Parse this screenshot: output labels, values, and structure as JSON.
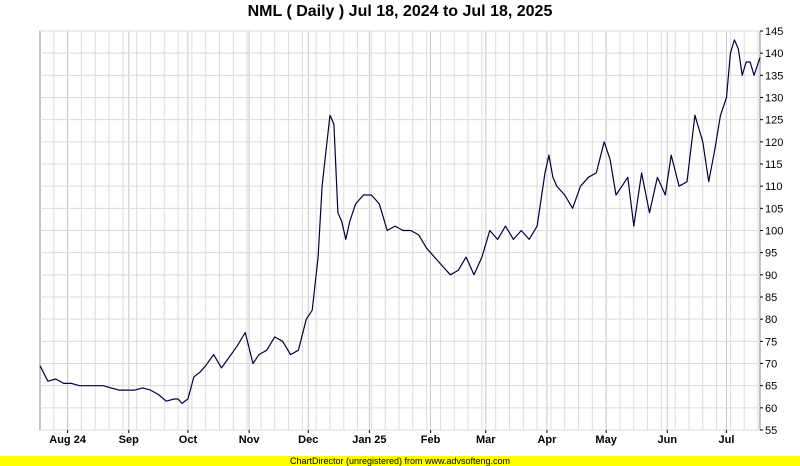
{
  "chart_data": {
    "type": "line",
    "title": "NML ( Daily ) Jul 18, 2024 to Jul 18, 2025",
    "xlabel": "",
    "ylabel": "",
    "ylim": [
      55,
      145
    ],
    "yticks": [
      55,
      60,
      65,
      70,
      75,
      80,
      85,
      90,
      95,
      100,
      105,
      110,
      115,
      120,
      125,
      130,
      135,
      140,
      145
    ],
    "xlim": [
      "2024-07-18",
      "2025-07-18"
    ],
    "xticks": [
      {
        "label": "Aug 24",
        "date": "2024-08-01"
      },
      {
        "label": "Sep",
        "date": "2024-09-01"
      },
      {
        "label": "Oct",
        "date": "2024-10-01"
      },
      {
        "label": "Nov",
        "date": "2024-11-01"
      },
      {
        "label": "Dec",
        "date": "2024-12-01"
      },
      {
        "label": "Jan 25",
        "date": "2025-01-01"
      },
      {
        "label": "Feb",
        "date": "2025-02-01"
      },
      {
        "label": "Mar",
        "date": "2025-03-01"
      },
      {
        "label": "Apr",
        "date": "2025-04-01"
      },
      {
        "label": "May",
        "date": "2025-05-01"
      },
      {
        "label": "Jun",
        "date": "2025-06-01"
      },
      {
        "label": "Jul",
        "date": "2025-07-01"
      }
    ],
    "grid": true,
    "line_color": "#000040",
    "series": [
      {
        "name": "",
        "x": [
          "2024-07-18",
          "2024-07-22",
          "2024-07-26",
          "2024-07-30",
          "2024-08-03",
          "2024-08-07",
          "2024-08-11",
          "2024-08-15",
          "2024-08-19",
          "2024-08-23",
          "2024-08-27",
          "2024-08-31",
          "2024-09-04",
          "2024-09-08",
          "2024-09-12",
          "2024-09-16",
          "2024-09-20",
          "2024-09-24",
          "2024-09-26",
          "2024-09-28",
          "2024-10-01",
          "2024-10-04",
          "2024-10-07",
          "2024-10-10",
          "2024-10-14",
          "2024-10-18",
          "2024-10-22",
          "2024-10-26",
          "2024-10-30",
          "2024-11-03",
          "2024-11-06",
          "2024-11-10",
          "2024-11-14",
          "2024-11-18",
          "2024-11-22",
          "2024-11-26",
          "2024-11-30",
          "2024-12-03",
          "2024-12-06",
          "2024-12-08",
          "2024-12-10",
          "2024-12-12",
          "2024-12-14",
          "2024-12-16",
          "2024-12-18",
          "2024-12-20",
          "2024-12-22",
          "2024-12-25",
          "2024-12-29",
          "2025-01-02",
          "2025-01-06",
          "2025-01-10",
          "2025-01-14",
          "2025-01-18",
          "2025-01-22",
          "2025-01-26",
          "2025-01-30",
          "2025-02-03",
          "2025-02-07",
          "2025-02-11",
          "2025-02-15",
          "2025-02-19",
          "2025-02-23",
          "2025-02-27",
          "2025-03-03",
          "2025-03-07",
          "2025-03-11",
          "2025-03-15",
          "2025-03-19",
          "2025-03-23",
          "2025-03-27",
          "2025-03-31",
          "2025-04-02",
          "2025-04-04",
          "2025-04-06",
          "2025-04-10",
          "2025-04-14",
          "2025-04-18",
          "2025-04-22",
          "2025-04-26",
          "2025-04-30",
          "2025-05-03",
          "2025-05-06",
          "2025-05-09",
          "2025-05-12",
          "2025-05-15",
          "2025-05-19",
          "2025-05-23",
          "2025-05-27",
          "2025-05-31",
          "2025-06-03",
          "2025-06-07",
          "2025-06-11",
          "2025-06-15",
          "2025-06-19",
          "2025-06-22",
          "2025-06-25",
          "2025-06-28",
          "2025-07-01",
          "2025-07-03",
          "2025-07-05",
          "2025-07-07",
          "2025-07-09",
          "2025-07-11",
          "2025-07-13",
          "2025-07-15",
          "2025-07-18"
        ],
        "y": [
          69.5,
          66,
          66.5,
          65.5,
          65.5,
          65,
          65,
          65,
          65,
          64.5,
          64,
          64,
          64,
          64.5,
          64,
          63,
          61.5,
          62,
          62,
          61,
          62,
          67,
          68,
          69.5,
          72,
          69,
          71.5,
          74,
          77,
          70,
          72,
          73,
          76,
          75,
          72,
          73,
          80,
          82,
          94,
          110,
          118,
          126,
          124,
          104,
          102,
          98,
          102,
          106,
          108,
          108,
          106,
          100,
          101,
          100,
          100,
          99,
          96,
          94,
          92,
          90,
          91,
          94,
          90,
          94,
          100,
          98,
          101,
          98,
          100,
          98,
          101,
          113,
          117,
          112,
          110,
          108,
          105,
          110,
          112,
          113,
          120,
          116,
          108,
          110,
          112,
          101,
          113,
          104,
          112,
          108,
          117,
          110,
          111,
          126,
          120,
          111,
          118,
          126,
          130,
          140,
          143,
          141,
          135,
          138,
          138,
          135,
          139
        ]
      }
    ]
  },
  "footer": {
    "text": "ChartDirector (unregistered) from www.advsofteng.com"
  }
}
